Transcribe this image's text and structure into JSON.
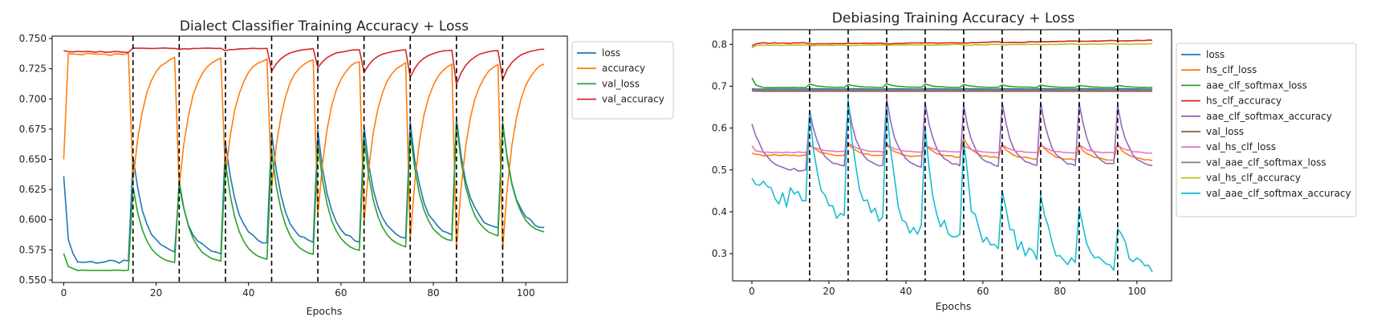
{
  "chart_data": [
    {
      "type": "line",
      "title": "Dialect Classifier Training Accuracy + Loss",
      "xlabel": "Epochs",
      "ylabel": "",
      "xlim": [
        -2.5,
        109
      ],
      "ylim": [
        0.548,
        0.752
      ],
      "xticks": [
        0,
        20,
        40,
        60,
        80,
        100
      ],
      "xtick_labels": [
        "0",
        "20",
        "40",
        "60",
        "80",
        "100"
      ],
      "yticks": [
        0.55,
        0.575,
        0.6,
        0.625,
        0.65,
        0.675,
        0.7,
        0.725,
        0.75
      ],
      "ytick_labels": [
        "0.550",
        "0.575",
        "0.600",
        "0.625",
        "0.650",
        "0.675",
        "0.700",
        "0.725",
        "0.750"
      ],
      "vlines": [
        15,
        25,
        35,
        45,
        55,
        65,
        75,
        85,
        95
      ],
      "legend_position": "outside-right",
      "series": [
        {
          "name": "loss",
          "color": "#1f77b4",
          "kind": "loss",
          "first_segment": {
            "start": 0.636,
            "end": 0.565,
            "shape": "flat",
            "noise": 0.0015
          },
          "segments": [
            {
              "start": 0.652,
              "end": 0.572
            },
            {
              "start": 0.628,
              "end": 0.571
            },
            {
              "start": 0.664,
              "end": 0.578
            },
            {
              "start": 0.672,
              "end": 0.579
            },
            {
              "start": 0.674,
              "end": 0.58
            },
            {
              "start": 0.677,
              "end": 0.583
            },
            {
              "start": 0.681,
              "end": 0.586
            },
            {
              "start": 0.684,
              "end": 0.59
            },
            {
              "start": 0.68,
              "end": 0.591
            }
          ]
        },
        {
          "name": "accuracy",
          "color": "#ff7f0e",
          "kind": "acc",
          "first_segment": {
            "start": 0.65,
            "end": 0.737,
            "shape": "jump",
            "noise": 0.0012
          },
          "segments": [
            {
              "start": 0.633,
              "end": 0.737
            },
            {
              "start": 0.627,
              "end": 0.737
            },
            {
              "start": 0.636,
              "end": 0.736
            },
            {
              "start": 0.626,
              "end": 0.736
            },
            {
              "start": 0.604,
              "end": 0.735
            },
            {
              "start": 0.598,
              "end": 0.734
            },
            {
              "start": 0.584,
              "end": 0.733
            },
            {
              "start": 0.576,
              "end": 0.733
            },
            {
              "start": 0.575,
              "end": 0.734
            }
          ]
        },
        {
          "name": "val_loss",
          "color": "#2ca02c",
          "kind": "loss",
          "first_segment": {
            "start": 0.572,
            "end": 0.558,
            "shape": "flat",
            "noise": 0.0003
          },
          "segments": [
            {
              "start": 0.627,
              "end": 0.563
            },
            {
              "start": 0.632,
              "end": 0.564
            },
            {
              "start": 0.648,
              "end": 0.565
            },
            {
              "start": 0.657,
              "end": 0.569
            },
            {
              "start": 0.663,
              "end": 0.572
            },
            {
              "start": 0.667,
              "end": 0.575
            },
            {
              "start": 0.672,
              "end": 0.58
            },
            {
              "start": 0.68,
              "end": 0.584
            },
            {
              "start": 0.681,
              "end": 0.587
            }
          ]
        },
        {
          "name": "val_accuracy",
          "color": "#d62728",
          "kind": "acc",
          "first_segment": {
            "start": 0.74,
            "end": 0.739,
            "shape": "flat",
            "noise": 0.0005
          },
          "segments": [
            {
              "start": 0.742,
              "end": 0.742
            },
            {
              "start": 0.741,
              "end": 0.742
            },
            {
              "start": 0.74,
              "end": 0.742
            },
            {
              "start": 0.723,
              "end": 0.742
            },
            {
              "start": 0.726,
              "end": 0.741
            },
            {
              "start": 0.722,
              "end": 0.741
            },
            {
              "start": 0.718,
              "end": 0.741
            },
            {
              "start": 0.712,
              "end": 0.741
            },
            {
              "start": 0.716,
              "end": 0.742
            }
          ]
        }
      ]
    },
    {
      "type": "line",
      "title": "Debiasing Training Accuracy + Loss",
      "xlabel": "Epochs",
      "ylabel": "",
      "xlim": [
        -5,
        109
      ],
      "ylim": [
        0.235,
        0.835
      ],
      "xticks": [
        0,
        20,
        40,
        60,
        80,
        100
      ],
      "xtick_labels": [
        "0",
        "20",
        "40",
        "60",
        "80",
        "100"
      ],
      "yticks": [
        0.3,
        0.4,
        0.5,
        0.6,
        0.7,
        0.8
      ],
      "ytick_labels": [
        "0.3",
        "0.4",
        "0.5",
        "0.6",
        "0.7",
        "0.8"
      ],
      "vlines": [
        15,
        25,
        35,
        45,
        55,
        65,
        75,
        85,
        95
      ],
      "legend_position": "outside-right",
      "series": [
        {
          "name": "loss",
          "color": "#1f77b4",
          "kind": "flat",
          "first_segment": {
            "start": 0.694,
            "end": 0.693,
            "shape": "flat",
            "noise": 0.0
          },
          "segments": [
            {
              "start": 0.694,
              "end": 0.693
            },
            {
              "start": 0.694,
              "end": 0.693
            },
            {
              "start": 0.694,
              "end": 0.693
            },
            {
              "start": 0.694,
              "end": 0.693
            },
            {
              "start": 0.694,
              "end": 0.693
            },
            {
              "start": 0.694,
              "end": 0.693
            },
            {
              "start": 0.694,
              "end": 0.693
            },
            {
              "start": 0.694,
              "end": 0.693
            },
            {
              "start": 0.694,
              "end": 0.693
            }
          ]
        },
        {
          "name": "hs_clf_loss",
          "color": "#ff7f0e",
          "kind": "loss",
          "first_segment": {
            "start": 0.54,
            "end": 0.535,
            "shape": "flat",
            "noise": 0.002
          },
          "segments": [
            {
              "start": 0.56,
              "end": 0.534
            },
            {
              "start": 0.562,
              "end": 0.533
            },
            {
              "start": 0.562,
              "end": 0.531
            },
            {
              "start": 0.563,
              "end": 0.53
            },
            {
              "start": 0.575,
              "end": 0.528
            },
            {
              "start": 0.56,
              "end": 0.526
            },
            {
              "start": 0.562,
              "end": 0.524
            },
            {
              "start": 0.56,
              "end": 0.523
            },
            {
              "start": 0.562,
              "end": 0.522
            }
          ]
        },
        {
          "name": "aae_clf_softmax_loss",
          "color": "#2ca02c",
          "kind": "loss",
          "first_segment": {
            "start": 0.72,
            "end": 0.697,
            "shape": "flat",
            "noise": 0.0005
          },
          "segments": [
            {
              "start": 0.705,
              "end": 0.697
            },
            {
              "start": 0.704,
              "end": 0.697
            },
            {
              "start": 0.706,
              "end": 0.697
            },
            {
              "start": 0.705,
              "end": 0.697
            },
            {
              "start": 0.704,
              "end": 0.697
            },
            {
              "start": 0.703,
              "end": 0.697
            },
            {
              "start": 0.703,
              "end": 0.697
            },
            {
              "start": 0.702,
              "end": 0.697
            },
            {
              "start": 0.702,
              "end": 0.697
            }
          ]
        },
        {
          "name": "hs_clf_accuracy",
          "color": "#d62728",
          "kind": "flat",
          "first_segment": {
            "start": 0.796,
            "end": 0.803,
            "shape": "flat",
            "noise": 0.001
          },
          "segments": [
            {
              "start": 0.801,
              "end": 0.802
            },
            {
              "start": 0.802,
              "end": 0.803
            },
            {
              "start": 0.801,
              "end": 0.804
            },
            {
              "start": 0.803,
              "end": 0.804
            },
            {
              "start": 0.803,
              "end": 0.806
            },
            {
              "start": 0.804,
              "end": 0.806
            },
            {
              "start": 0.806,
              "end": 0.808
            },
            {
              "start": 0.807,
              "end": 0.809
            },
            {
              "start": 0.808,
              "end": 0.81
            }
          ]
        },
        {
          "name": "aae_clf_softmax_accuracy",
          "color": "#9467bd",
          "kind": "loss",
          "first_segment": {
            "start": 0.61,
            "end": 0.496,
            "shape": "decay",
            "noise": 0.003
          },
          "segments": [
            {
              "start": 0.64,
              "end": 0.505
            },
            {
              "start": 0.66,
              "end": 0.505
            },
            {
              "start": 0.67,
              "end": 0.505
            },
            {
              "start": 0.66,
              "end": 0.506
            },
            {
              "start": 0.655,
              "end": 0.506
            },
            {
              "start": 0.66,
              "end": 0.507
            },
            {
              "start": 0.66,
              "end": 0.507
            },
            {
              "start": 0.66,
              "end": 0.508
            },
            {
              "start": 0.655,
              "end": 0.508
            }
          ]
        },
        {
          "name": "val_loss",
          "color": "#8c564b",
          "kind": "flat",
          "first_segment": {
            "start": 0.689,
            "end": 0.688,
            "shape": "flat",
            "noise": 0.0
          },
          "segments": [
            {
              "start": 0.688,
              "end": 0.688
            },
            {
              "start": 0.688,
              "end": 0.688
            },
            {
              "start": 0.688,
              "end": 0.688
            },
            {
              "start": 0.688,
              "end": 0.688
            },
            {
              "start": 0.688,
              "end": 0.688
            },
            {
              "start": 0.688,
              "end": 0.688
            },
            {
              "start": 0.688,
              "end": 0.688
            },
            {
              "start": 0.688,
              "end": 0.688
            },
            {
              "start": 0.688,
              "end": 0.688
            }
          ]
        },
        {
          "name": "val_hs_clf_loss",
          "color": "#e377c2",
          "kind": "loss",
          "first_segment": {
            "start": 0.558,
            "end": 0.542,
            "shape": "flat",
            "noise": 0.001
          },
          "segments": [
            {
              "start": 0.56,
              "end": 0.543
            },
            {
              "start": 0.565,
              "end": 0.543
            },
            {
              "start": 0.562,
              "end": 0.542
            },
            {
              "start": 0.56,
              "end": 0.542
            },
            {
              "start": 0.558,
              "end": 0.541
            },
            {
              "start": 0.56,
              "end": 0.541
            },
            {
              "start": 0.56,
              "end": 0.54
            },
            {
              "start": 0.56,
              "end": 0.54
            },
            {
              "start": 0.56,
              "end": 0.54
            }
          ]
        },
        {
          "name": "val_aae_clf_softmax_loss",
          "color": "#7f7f7f",
          "kind": "flat",
          "first_segment": {
            "start": 0.692,
            "end": 0.691,
            "shape": "flat",
            "noise": 0.0
          },
          "segments": [
            {
              "start": 0.691,
              "end": 0.691
            },
            {
              "start": 0.691,
              "end": 0.691
            },
            {
              "start": 0.691,
              "end": 0.691
            },
            {
              "start": 0.691,
              "end": 0.691
            },
            {
              "start": 0.691,
              "end": 0.691
            },
            {
              "start": 0.691,
              "end": 0.691
            },
            {
              "start": 0.691,
              "end": 0.691
            },
            {
              "start": 0.691,
              "end": 0.691
            },
            {
              "start": 0.691,
              "end": 0.691
            }
          ]
        },
        {
          "name": "val_hs_clf_accuracy",
          "color": "#bcbd22",
          "kind": "flat",
          "first_segment": {
            "start": 0.792,
            "end": 0.798,
            "shape": "flat",
            "noise": 0.001
          },
          "segments": [
            {
              "start": 0.797,
              "end": 0.798
            },
            {
              "start": 0.797,
              "end": 0.799
            },
            {
              "start": 0.798,
              "end": 0.799
            },
            {
              "start": 0.798,
              "end": 0.8
            },
            {
              "start": 0.798,
              "end": 0.8
            },
            {
              "start": 0.799,
              "end": 0.8
            },
            {
              "start": 0.799,
              "end": 0.801
            },
            {
              "start": 0.8,
              "end": 0.801
            },
            {
              "start": 0.8,
              "end": 0.801
            }
          ]
        },
        {
          "name": "val_aae_clf_softmax_accuracy",
          "color": "#17becf",
          "kind": "loss",
          "first_segment": {
            "start": 0.48,
            "end": 0.43,
            "shape": "decay",
            "noise": 0.025
          },
          "segments": [
            {
              "start": 0.64,
              "end": 0.39
            },
            {
              "start": 0.668,
              "end": 0.37
            },
            {
              "start": 0.65,
              "end": 0.34
            },
            {
              "start": 0.6,
              "end": 0.33
            },
            {
              "start": 0.57,
              "end": 0.3
            },
            {
              "start": 0.45,
              "end": 0.29
            },
            {
              "start": 0.44,
              "end": 0.275
            },
            {
              "start": 0.41,
              "end": 0.27
            },
            {
              "start": 0.36,
              "end": 0.265
            }
          ]
        }
      ]
    }
  ]
}
